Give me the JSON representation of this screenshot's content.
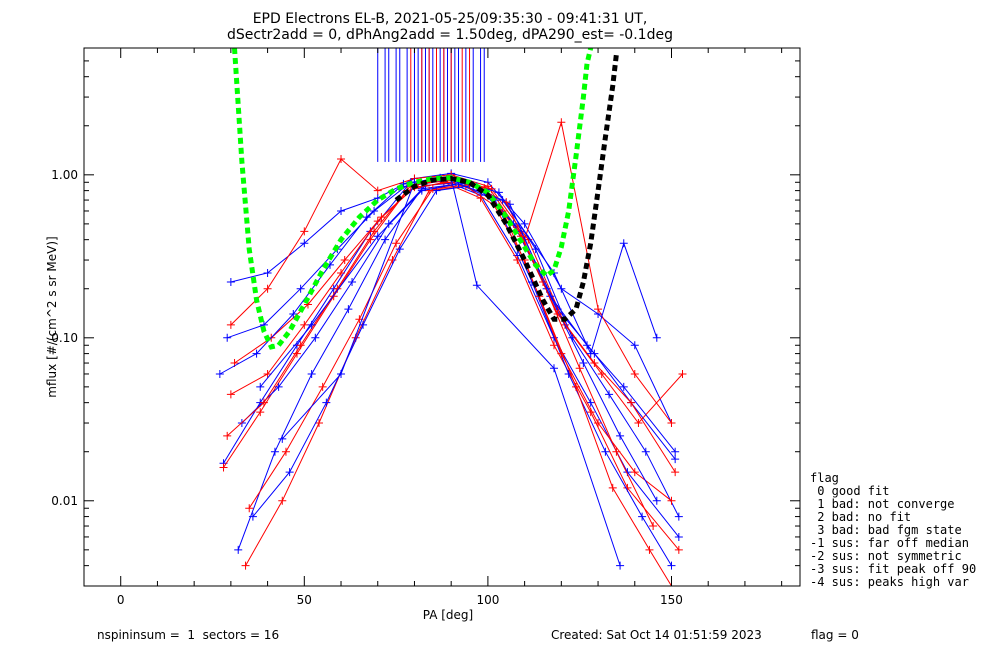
{
  "title": {
    "line1": "EPD Electrons EL-B, 2021-05-25/09:35:30 - 09:41:31 UT,",
    "line2": "dSectr2add = 0, dPhAng2add = 1.50deg, dPA290_est=  -0.1deg"
  },
  "legend": {
    "title": "flag",
    "entries": [
      " 0 good fit",
      " 1 bad: not converge",
      " 2 bad: no fit",
      " 3 bad: bad fgm state",
      "-1 sus: far off median",
      "-2 sus: not symmetric",
      "-3 sus: fit peak off 90",
      "-4 sus: peaks high var"
    ]
  },
  "footer": {
    "left": "nspininsum =  1  sectors = 16",
    "created": "Created: Sat Oct 14 01:51:59 2023",
    "flag": "flag = 0"
  },
  "colors": {
    "red_series": "#ff0000",
    "blue_series": "#0000ff",
    "green_fit": "#00ff00",
    "black_fit": "#000000",
    "axes": "#000000",
    "background": "#ffffff"
  },
  "chart_data": {
    "type": "line",
    "xlabel": "PA [deg]",
    "ylabel": "mflux [#/(cm^2 s sr MeV)]",
    "xlim": [
      -10,
      185
    ],
    "ylim": [
      0.003,
      6.0
    ],
    "yscale": "log",
    "x_ticks": [
      0,
      50,
      100,
      150
    ],
    "x_tick_labels": [
      "0",
      "50",
      "100",
      "150"
    ],
    "y_ticks": [
      0.01,
      0.1,
      1.0
    ],
    "y_tick_labels": [
      "0.01",
      "0.10",
      "1.00"
    ],
    "grid": false,
    "legend_position": "outside-right-bottom",
    "series": [
      {
        "color": "#0000ff",
        "x": [
          30,
          40,
          50,
          60,
          70,
          80,
          90,
          100,
          110,
          120,
          130,
          140,
          150
        ],
        "y": [
          0.22,
          0.25,
          0.38,
          0.6,
          0.72,
          0.95,
          1.02,
          0.9,
          0.5,
          0.2,
          0.14,
          0.09,
          0.03
        ]
      },
      {
        "color": "#ff0000",
        "x": [
          30,
          40,
          50,
          60,
          70,
          80,
          90,
          100,
          110,
          120,
          130,
          140,
          150
        ],
        "y": [
          0.12,
          0.2,
          0.45,
          1.25,
          0.8,
          0.95,
          1.0,
          0.85,
          0.4,
          2.1,
          0.15,
          0.06,
          0.03
        ]
      },
      {
        "color": "#0000ff",
        "x": [
          28,
          38,
          48,
          58,
          68,
          78,
          88,
          98,
          108,
          118,
          128,
          138,
          152
        ],
        "y": [
          0.017,
          0.04,
          0.09,
          0.2,
          0.45,
          0.85,
          0.92,
          0.75,
          0.32,
          0.1,
          0.04,
          0.015,
          0.006
        ]
      },
      {
        "color": "#ff0000",
        "x": [
          28,
          38,
          48,
          58,
          68,
          78,
          88,
          98,
          108,
          118,
          128,
          138,
          152
        ],
        "y": [
          0.016,
          0.035,
          0.08,
          0.18,
          0.4,
          0.8,
          0.9,
          0.72,
          0.3,
          0.09,
          0.035,
          0.012,
          0.005
        ]
      },
      {
        "color": "#0000ff",
        "x": [
          32,
          42,
          52,
          62,
          72,
          82,
          92,
          102,
          112,
          122,
          132,
          142,
          150
        ],
        "y": [
          0.005,
          0.02,
          0.06,
          0.15,
          0.4,
          0.82,
          0.88,
          0.7,
          0.22,
          0.06,
          0.02,
          0.008,
          0.004
        ]
      },
      {
        "color": "#ff0000",
        "x": [
          34,
          44,
          54,
          64,
          74,
          84,
          94,
          104,
          114,
          124,
          134,
          144,
          150
        ],
        "y": [
          0.004,
          0.01,
          0.03,
          0.1,
          0.3,
          0.8,
          0.85,
          0.6,
          0.18,
          0.05,
          0.012,
          0.005,
          0.003
        ]
      },
      {
        "color": "#0000ff",
        "x": [
          29,
          39,
          49,
          59,
          69,
          79,
          89,
          99,
          109,
          119,
          129,
          139,
          151
        ],
        "y": [
          0.1,
          0.12,
          0.2,
          0.35,
          0.6,
          0.9,
          0.95,
          0.8,
          0.45,
          0.15,
          0.08,
          0.04,
          0.018
        ]
      },
      {
        "color": "#ff0000",
        "x": [
          31,
          41,
          51,
          61,
          71,
          81,
          91,
          101,
          111,
          121,
          131,
          141,
          153
        ],
        "y": [
          0.07,
          0.1,
          0.16,
          0.3,
          0.55,
          0.88,
          0.93,
          0.82,
          0.4,
          0.12,
          0.06,
          0.03,
          0.06
        ]
      },
      {
        "color": "#0000ff",
        "x": [
          33,
          43,
          53,
          63,
          73,
          83,
          93,
          103,
          113,
          123,
          133,
          143,
          152
        ],
        "y": [
          0.03,
          0.05,
          0.1,
          0.22,
          0.5,
          0.86,
          0.9,
          0.78,
          0.35,
          0.1,
          0.045,
          0.02,
          0.008
        ]
      },
      {
        "color": "#ff0000",
        "x": [
          30,
          40,
          50,
          60,
          70,
          80,
          90,
          100,
          110,
          120,
          130,
          140,
          150
        ],
        "y": [
          0.045,
          0.06,
          0.12,
          0.25,
          0.52,
          0.84,
          0.9,
          0.76,
          0.3,
          0.08,
          0.03,
          0.015,
          0.01
        ]
      },
      {
        "color": "#0000ff",
        "x": [
          36,
          46,
          56,
          66,
          76,
          86,
          96,
          106,
          116,
          126,
          136,
          146
        ],
        "y": [
          0.008,
          0.015,
          0.04,
          0.12,
          0.35,
          0.8,
          0.86,
          0.66,
          0.2,
          0.07,
          0.025,
          0.01
        ]
      },
      {
        "color": "#ff0000",
        "x": [
          35,
          45,
          55,
          65,
          75,
          85,
          95,
          105,
          115,
          125,
          135,
          145
        ],
        "y": [
          0.009,
          0.02,
          0.05,
          0.13,
          0.38,
          0.82,
          0.87,
          0.68,
          0.22,
          0.065,
          0.02,
          0.007
        ]
      },
      {
        "color": "#0000ff",
        "x": [
          27,
          37,
          47,
          57,
          67,
          77,
          87,
          97,
          107,
          117,
          127,
          137,
          151
        ],
        "y": [
          0.06,
          0.08,
          0.14,
          0.28,
          0.55,
          0.88,
          0.96,
          0.85,
          0.5,
          0.18,
          0.09,
          0.05,
          0.02
        ]
      },
      {
        "color": "#ff0000",
        "x": [
          29,
          39,
          49,
          59,
          69,
          79,
          89,
          99,
          109,
          119,
          129,
          139,
          151
        ],
        "y": [
          0.025,
          0.04,
          0.09,
          0.2,
          0.45,
          0.86,
          0.95,
          0.83,
          0.42,
          0.14,
          0.07,
          0.04,
          0.015
        ]
      },
      {
        "color": "#0000ff",
        "x": [
          44,
          60,
          80,
          90,
          97,
          118,
          136
        ],
        "y": [
          0.024,
          0.06,
          0.9,
          0.95,
          0.21,
          0.065,
          0.004
        ]
      },
      {
        "color": "#0000ff",
        "x": [
          38,
          52,
          70,
          82,
          92,
          104,
          118,
          128,
          137,
          146
        ],
        "y": [
          0.05,
          0.12,
          0.42,
          0.8,
          0.88,
          0.7,
          0.25,
          0.08,
          0.38,
          0.1
        ]
      }
    ],
    "fits": [
      {
        "color": "#00ff00",
        "style": "dashed",
        "x": [
          31,
          33,
          35,
          37,
          39,
          41,
          43,
          46,
          50,
          55,
          60,
          65,
          70,
          75,
          80,
          85,
          90,
          95,
          100,
          105,
          110,
          113,
          116,
          118,
          120,
          122,
          124,
          126,
          127,
          128
        ],
        "y": [
          6.0,
          1.2,
          0.35,
          0.17,
          0.11,
          0.088,
          0.09,
          0.11,
          0.16,
          0.26,
          0.4,
          0.55,
          0.7,
          0.82,
          0.9,
          0.95,
          0.96,
          0.9,
          0.78,
          0.55,
          0.36,
          0.28,
          0.24,
          0.26,
          0.36,
          0.6,
          1.3,
          3.0,
          4.8,
          6.0
        ]
      },
      {
        "color": "#000000",
        "style": "dashed",
        "x": [
          75,
          80,
          85,
          90,
          95,
          100,
          105,
          110,
          115,
          118,
          121,
          124,
          126,
          128,
          130,
          132,
          134,
          135
        ],
        "y": [
          0.7,
          0.85,
          0.93,
          0.95,
          0.9,
          0.75,
          0.5,
          0.3,
          0.17,
          0.13,
          0.13,
          0.15,
          0.22,
          0.38,
          0.8,
          1.7,
          3.5,
          5.5
        ]
      }
    ],
    "spikes": [
      {
        "color": "#0000ff",
        "x": [
          70,
          72,
          73,
          75,
          76,
          78,
          80,
          81,
          82,
          83,
          84,
          85,
          86,
          87,
          88,
          89,
          90,
          91,
          92,
          94,
          96,
          98,
          99
        ]
      },
      {
        "color": "#ff0000",
        "x": [
          79,
          82,
          84,
          86,
          88,
          90,
          93,
          95
        ]
      }
    ]
  }
}
